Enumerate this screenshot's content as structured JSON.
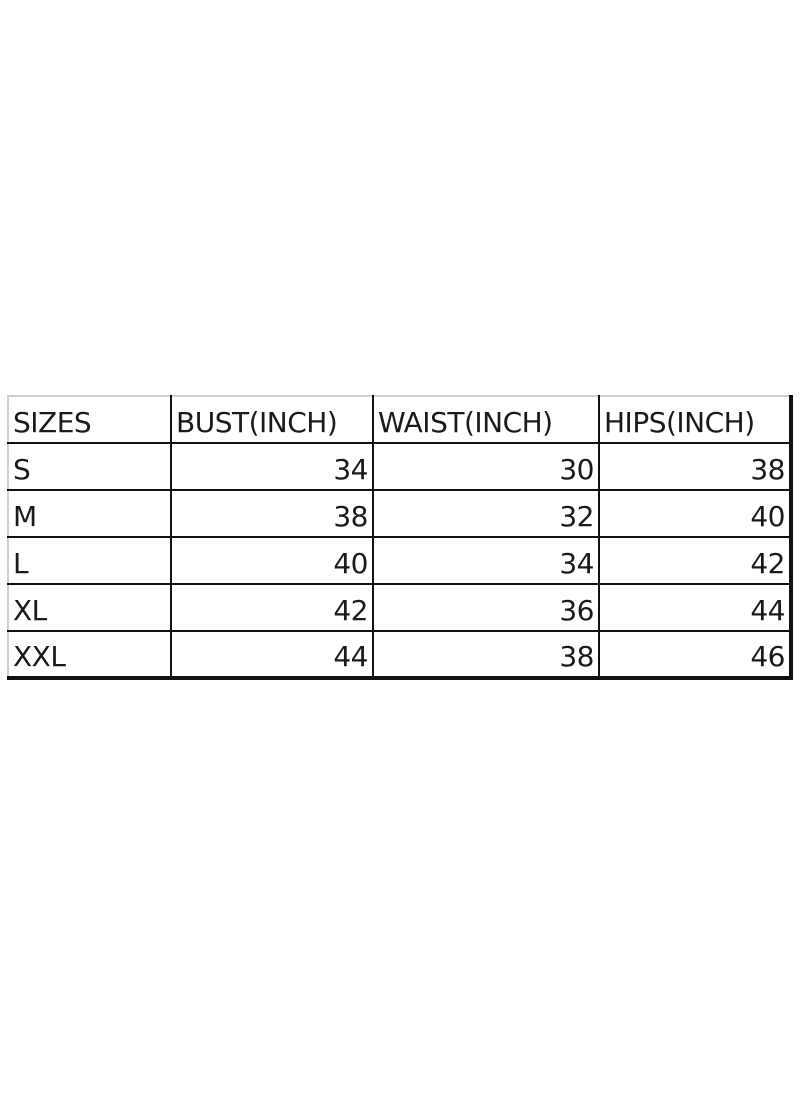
{
  "size_chart": {
    "headers": [
      "SIZES",
      "BUST(INCH)",
      "WAIST(INCH)",
      "HIPS(INCH)"
    ],
    "rows": [
      [
        "S",
        "34",
        "30",
        "38"
      ],
      [
        "M",
        "38",
        "32",
        "40"
      ],
      [
        "L",
        "40",
        "34",
        "42"
      ],
      [
        "XL",
        "42",
        "36",
        "44"
      ],
      [
        "XXL",
        "44",
        "38",
        "46"
      ]
    ]
  }
}
